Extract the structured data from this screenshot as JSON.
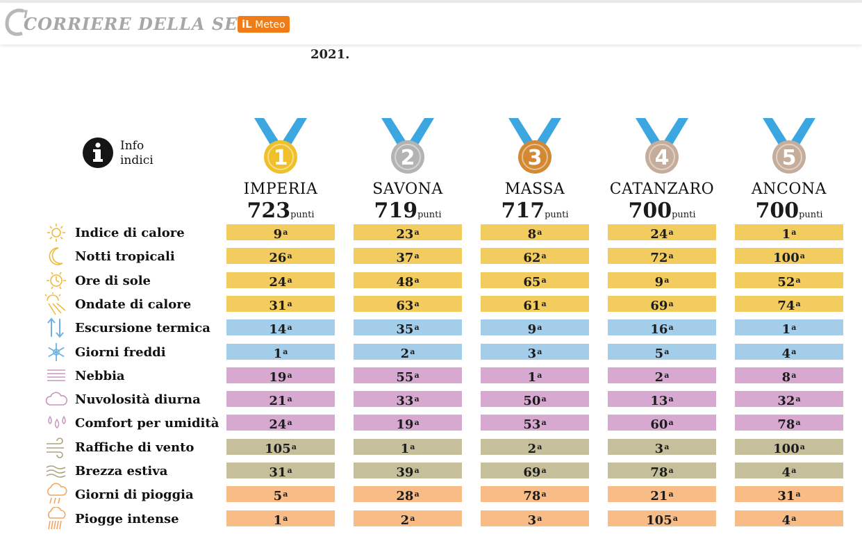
{
  "header": {
    "brand": "CORRIERE DELLA SERA",
    "meteo_il": "iL",
    "meteo_word": "Meteo"
  },
  "intro_tail": "2021.",
  "info": {
    "line1": "Info",
    "line2": "indici"
  },
  "colors": {
    "calore": "#f2cc5e",
    "freddo": "#a3cde9",
    "umidita": "#d7a9d1",
    "vento": "#c5c09b",
    "pioggia": "#f8bd86",
    "ribbon": "#3ba6e0",
    "gold": "#f0c02a",
    "silver": "#b3b3b3",
    "bronze": "#d38933",
    "medal4": "#c6ad9b",
    "medal5": "#c6ad9b"
  },
  "cities": [
    {
      "rank": "1",
      "name": "IMPERIA",
      "score": "723",
      "unit": "punti",
      "medal": "gold"
    },
    {
      "rank": "2",
      "name": "SAVONA",
      "score": "719",
      "unit": "punti",
      "medal": "silver"
    },
    {
      "rank": "3",
      "name": "MASSA",
      "score": "717",
      "unit": "punti",
      "medal": "bronze"
    },
    {
      "rank": "4",
      "name": "CATANZARO",
      "score": "700",
      "unit": "punti",
      "medal": "medal4"
    },
    {
      "rank": "5",
      "name": "ANCONA",
      "score": "700",
      "unit": "punti",
      "medal": "medal5"
    }
  ],
  "ordinal_suffix": "a",
  "rows": [
    {
      "label": "Indice di calore",
      "icon": "sun-icon",
      "group": "calore",
      "values": [
        "9",
        "23",
        "8",
        "24",
        "1"
      ]
    },
    {
      "label": "Notti tropicali",
      "icon": "moon-icon",
      "group": "calore",
      "values": [
        "26",
        "37",
        "62",
        "72",
        "100"
      ]
    },
    {
      "label": "Ore di sole",
      "icon": "sun-clock-icon",
      "group": "calore",
      "values": [
        "24",
        "48",
        "65",
        "9",
        "52"
      ]
    },
    {
      "label": "Ondate di calore",
      "icon": "heatwave-icon",
      "group": "calore",
      "values": [
        "31",
        "63",
        "61",
        "69",
        "74"
      ]
    },
    {
      "label": "Escursione termica",
      "icon": "temperature-arrows-icon",
      "group": "freddo",
      "values": [
        "14",
        "35",
        "9",
        "16",
        "1"
      ]
    },
    {
      "label": "Giorni freddi",
      "icon": "snowflake-icon",
      "group": "freddo",
      "values": [
        "1",
        "2",
        "3",
        "5",
        "4"
      ]
    },
    {
      "label": "Nebbia",
      "icon": "fog-icon",
      "group": "umidita",
      "values": [
        "19",
        "55",
        "1",
        "2",
        "8"
      ]
    },
    {
      "label": "Nuvolosità diurna",
      "icon": "cloud-icon",
      "group": "umidita",
      "values": [
        "21",
        "33",
        "50",
        "13",
        "32"
      ]
    },
    {
      "label": "Comfort per umidità",
      "icon": "droplets-icon",
      "group": "umidita",
      "values": [
        "24",
        "19",
        "53",
        "60",
        "78"
      ]
    },
    {
      "label": "Raffiche di vento",
      "icon": "wind-gust-icon",
      "group": "vento",
      "values": [
        "105",
        "1",
        "2",
        "3",
        "100"
      ]
    },
    {
      "label": "Brezza estiva",
      "icon": "breeze-icon",
      "group": "vento",
      "values": [
        "31",
        "39",
        "69",
        "78",
        "4"
      ]
    },
    {
      "label": "Giorni di pioggia",
      "icon": "rain-cloud-icon",
      "group": "pioggia",
      "values": [
        "5",
        "28",
        "78",
        "21",
        "31"
      ]
    },
    {
      "label": "Piogge intense",
      "icon": "heavy-rain-icon",
      "group": "pioggia",
      "values": [
        "1",
        "2",
        "3",
        "105",
        "4"
      ]
    }
  ]
}
